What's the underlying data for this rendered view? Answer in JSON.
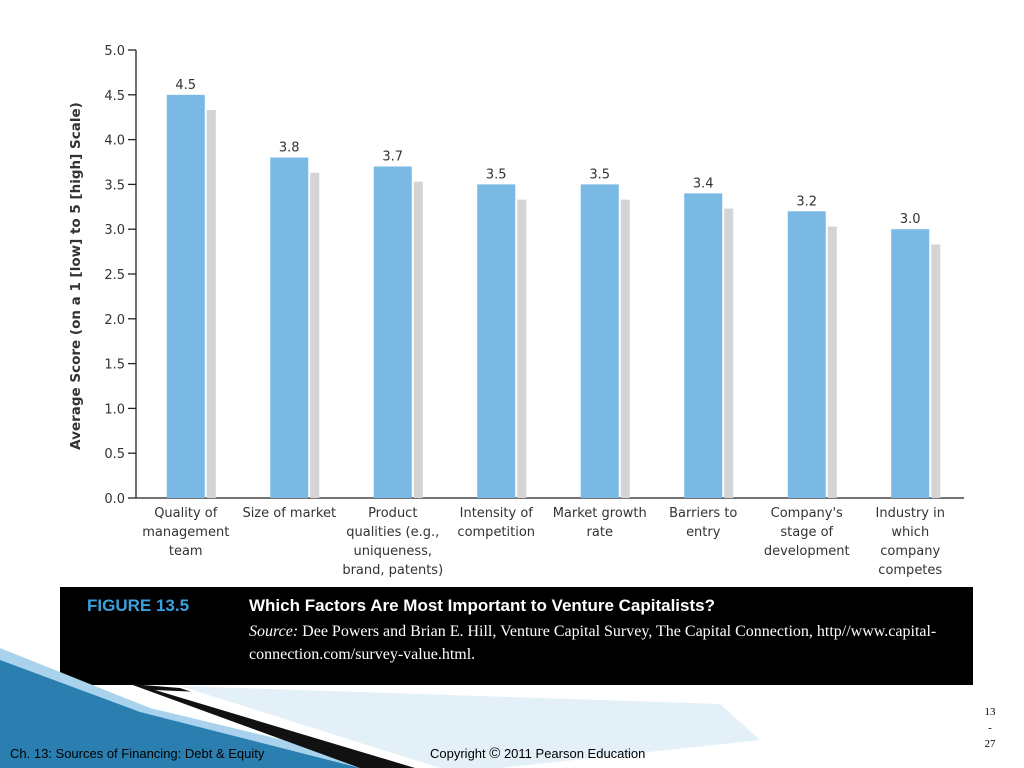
{
  "chart_data": {
    "type": "bar",
    "categories": [
      "Quality of management team",
      "Size of market",
      "Product qualities (e.g., uniqueness, brand, patents)",
      "Intensity of competition",
      "Market growth rate",
      "Barriers to entry",
      "Company's stage of development",
      "Industry in which company competes"
    ],
    "category_lines": [
      [
        "Quality of",
        "management",
        "team"
      ],
      [
        "Size of market"
      ],
      [
        "Product",
        "qualities (e.g.,",
        "uniqueness,",
        "brand, patents)"
      ],
      [
        "Intensity of",
        "competition"
      ],
      [
        "Market growth",
        "rate"
      ],
      [
        "Barriers to",
        "entry"
      ],
      [
        "Company's",
        "stage of",
        "development"
      ],
      [
        "Industry in",
        "which",
        "company",
        "competes"
      ]
    ],
    "values": [
      4.5,
      3.8,
      3.7,
      3.5,
      3.5,
      3.4,
      3.2,
      3.0
    ],
    "value_labels": [
      "4.5",
      "3.8",
      "3.7",
      "3.5",
      "3.5",
      "3.4",
      "3.2",
      "3.0"
    ],
    "ylabel": "Average Score (on a 1 [low] to 5 [high] Scale)",
    "xlabel": "",
    "ylim": [
      0,
      5
    ],
    "yticks": [
      "0.0",
      "0.5",
      "1.0",
      "1.5",
      "2.0",
      "2.5",
      "3.0",
      "3.5",
      "4.0",
      "4.5",
      "5.0"
    ],
    "grid": false,
    "bar_color": "#79b9e4",
    "shadow_color": "#d4d4d4"
  },
  "caption": {
    "figure_number": "FIGURE 13.5",
    "title": "Which Factors Are Most Important to Venture Capitalists?",
    "source_label": "Source:",
    "source_text": "Dee Powers and Brian E. Hill, Venture Capital Survey, The Capital Connection, http//www.capital-connection.com/survey-value.html."
  },
  "footer": {
    "chapter": "Ch. 13: Sources of Financing: Debt & Equity",
    "copyright_prefix": "Copyright",
    "copyright_symbol": "©",
    "copyright_rest": "2011 Pearson Education",
    "page_major": "13",
    "page_sep": "-",
    "page_minor": "27"
  },
  "colors": {
    "caption_bg": "#000000",
    "figure_number": "#3aa0dc",
    "deco_light": "#a9d3ec",
    "deco_dark": "#1e6e9c"
  }
}
